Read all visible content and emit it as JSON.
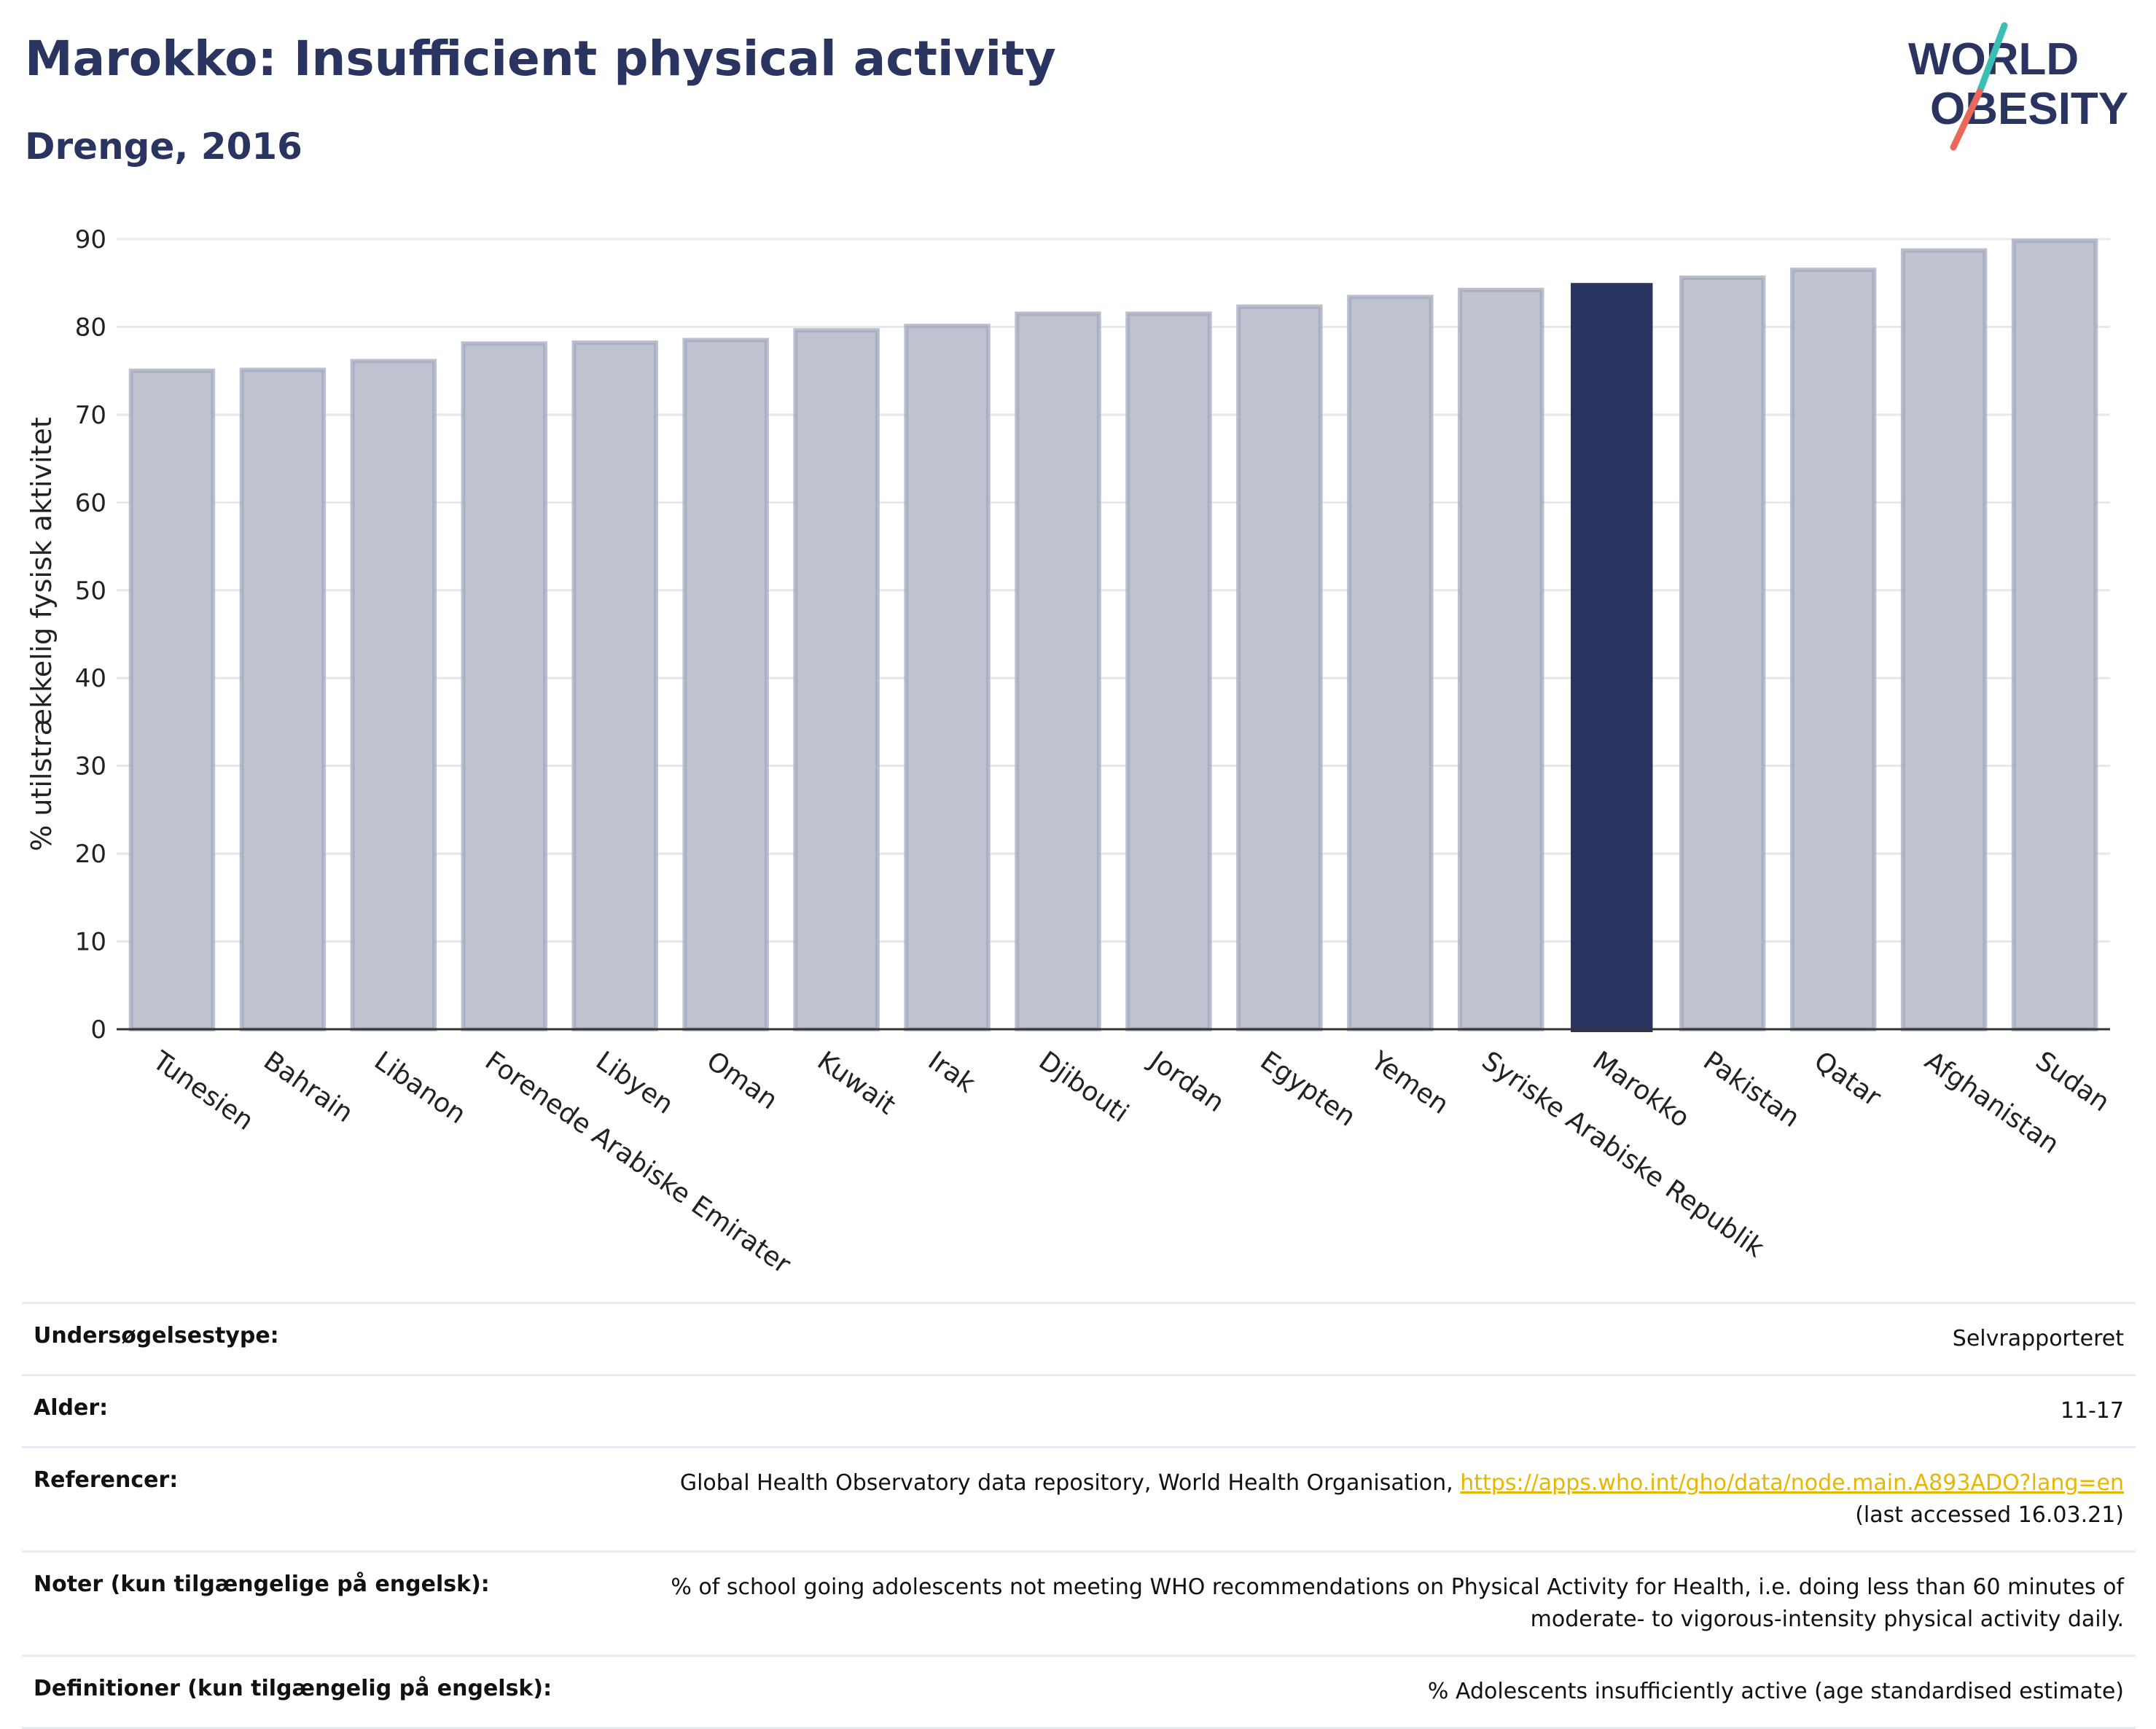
{
  "title": "Marokko: Insufficient physical activity",
  "subtitle": "Drenge, 2016",
  "logo": {
    "line1": "WORLD",
    "line2": "OBESITY",
    "accent_teal": "#3bbfb5",
    "accent_red": "#e8695a"
  },
  "colors": {
    "bar": "#bfc3d0",
    "bar_edge": "#a3a9be",
    "highlight": "#2a3460",
    "grid": "#e6e8ee",
    "axis": "#333333"
  },
  "chart_data": {
    "type": "bar",
    "ylabel": "% utilstrækkelig fysisk aktivitet",
    "ylim": [
      0,
      90
    ],
    "yticks": [
      0,
      10,
      20,
      30,
      40,
      50,
      60,
      70,
      80,
      90
    ],
    "grid": true,
    "categories": [
      "Tunesien",
      "Bahrain",
      "Libanon",
      "Forenede Arabiske Emirater",
      "Libyen",
      "Oman",
      "Kuwait",
      "Irak",
      "Djibouti",
      "Jordan",
      "Egypten",
      "Yemen",
      "Syriske Arabiske Republik",
      "Marokko",
      "Pakistan",
      "Qatar",
      "Afghanistan",
      "Sudan"
    ],
    "values": [
      75.0,
      75.1,
      76.1,
      78.1,
      78.2,
      78.5,
      79.6,
      80.1,
      81.5,
      81.5,
      82.3,
      83.4,
      84.2,
      85.0,
      85.6,
      86.5,
      88.7,
      89.8
    ],
    "highlight": "Marokko"
  },
  "info": {
    "survey_type": {
      "label": "Undersøgelsestype:",
      "value": "Selvrapporteret"
    },
    "age": {
      "label": "Alder:",
      "value": "11-17"
    },
    "references": {
      "label": "Referencer:",
      "text": "Global Health Observatory data repository, World Health Organisation,",
      "link": "https://apps.who.int/gho/data/node.main.A893ADO?lang=en",
      "accessed": "(last accessed 16.03.21)"
    },
    "notes": {
      "label": "Noter (kun tilgængelige på engelsk):",
      "value": "% of school going adolescents not meeting WHO recommendations on Physical Activity for Health, i.e. doing less than 60 minutes of moderate- to vigorous-intensity physical activity daily."
    },
    "definitions": {
      "label": "Definitioner (kun tilgængelig på engelsk):",
      "value": "% Adolescents insufficiently active (age standardised estimate)"
    }
  }
}
